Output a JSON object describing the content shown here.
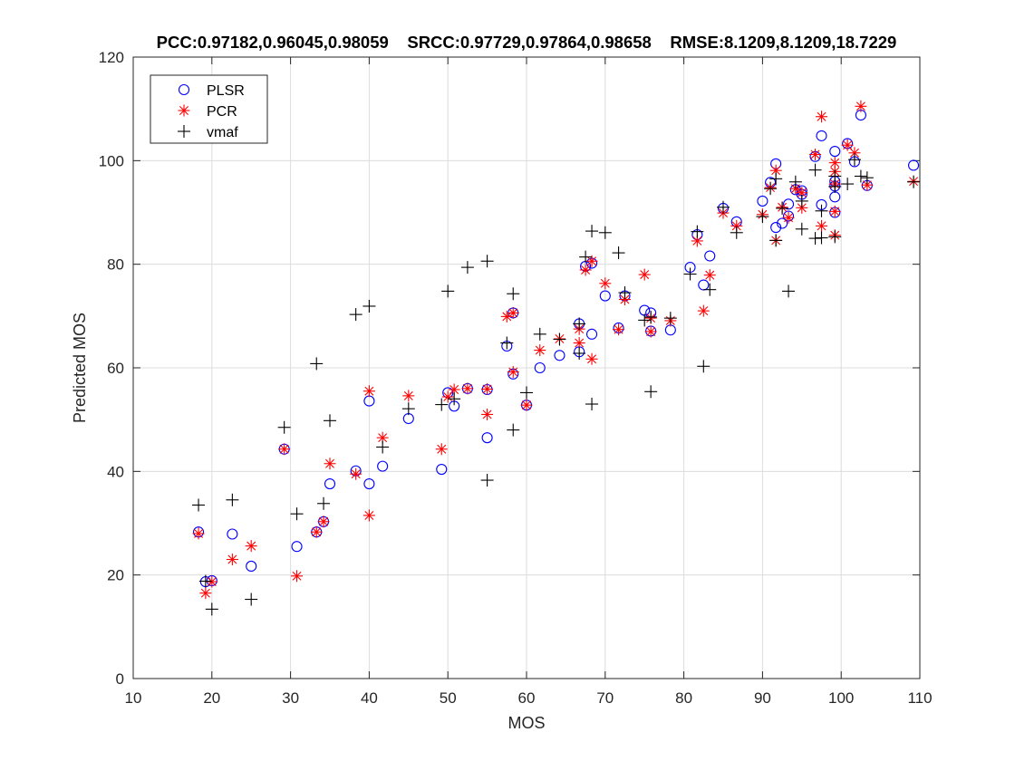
{
  "chart_data": {
    "type": "scatter",
    "title": "PCC:0.97182,0.96045,0.98059    SRCC:0.97729,0.97864,0.98658    RMSE:8.1209,8.1209,18.7229",
    "xlabel": "MOS",
    "ylabel": "Predicted MOS",
    "xlim": [
      10,
      110
    ],
    "ylim": [
      0,
      120
    ],
    "xticks": [
      "10",
      "20",
      "30",
      "40",
      "50",
      "60",
      "70",
      "80",
      "90",
      "100",
      "110"
    ],
    "yticks": [
      "0",
      "20",
      "40",
      "60",
      "80",
      "100",
      "120"
    ],
    "grid": true,
    "legend_position": "top-left",
    "series": [
      {
        "name": "PLSR",
        "marker": "circle",
        "color": "#0000ff",
        "points": [
          [
            18.3,
            28.3
          ],
          [
            19.2,
            18.7
          ],
          [
            20.0,
            18.9
          ],
          [
            22.6,
            27.9
          ],
          [
            25.0,
            21.7
          ],
          [
            29.2,
            44.3
          ],
          [
            30.8,
            25.5
          ],
          [
            33.3,
            28.3
          ],
          [
            34.2,
            30.3
          ],
          [
            35.0,
            37.6
          ],
          [
            38.3,
            40.1
          ],
          [
            40.0,
            37.6
          ],
          [
            40.0,
            53.6
          ],
          [
            41.7,
            41.0
          ],
          [
            45.0,
            50.2
          ],
          [
            49.2,
            40.4
          ],
          [
            50.0,
            55.2
          ],
          [
            50.8,
            52.6
          ],
          [
            52.5,
            56.0
          ],
          [
            55.0,
            55.8
          ],
          [
            55.0,
            46.5
          ],
          [
            57.5,
            64.2
          ],
          [
            58.3,
            70.6
          ],
          [
            58.3,
            58.8
          ],
          [
            60.0,
            52.8
          ],
          [
            61.7,
            60.0
          ],
          [
            64.2,
            62.4
          ],
          [
            66.7,
            68.5
          ],
          [
            66.7,
            63.1
          ],
          [
            67.5,
            79.6
          ],
          [
            68.3,
            80.2
          ],
          [
            68.3,
            66.5
          ],
          [
            70.0,
            73.9
          ],
          [
            71.7,
            67.7
          ],
          [
            72.5,
            73.9
          ],
          [
            75.0,
            71.1
          ],
          [
            75.8,
            70.6
          ],
          [
            75.8,
            67.1
          ],
          [
            78.3,
            67.3
          ],
          [
            80.8,
            79.4
          ],
          [
            81.7,
            85.7
          ],
          [
            82.5,
            76.0
          ],
          [
            83.3,
            81.6
          ],
          [
            85.0,
            90.8
          ],
          [
            86.7,
            88.2
          ],
          [
            90.0,
            92.2
          ],
          [
            91.0,
            95.8
          ],
          [
            91.7,
            87.1
          ],
          [
            91.7,
            99.4
          ],
          [
            92.5,
            87.9
          ],
          [
            93.3,
            89.3
          ],
          [
            93.3,
            91.6
          ],
          [
            94.2,
            94.4
          ],
          [
            95.0,
            94.2
          ],
          [
            95.0,
            93.5
          ],
          [
            96.7,
            100.8
          ],
          [
            97.5,
            104.8
          ],
          [
            97.5,
            91.5
          ],
          [
            99.2,
            101.8
          ],
          [
            99.2,
            96.0
          ],
          [
            99.2,
            95.1
          ],
          [
            99.2,
            93.0
          ],
          [
            99.2,
            90.0
          ],
          [
            100.8,
            103.3
          ],
          [
            101.7,
            99.8
          ],
          [
            102.5,
            108.8
          ],
          [
            103.3,
            95.2
          ],
          [
            109.2,
            99.1
          ]
        ]
      },
      {
        "name": "PCR",
        "marker": "asterisk",
        "color": "#ff0000",
        "points": [
          [
            18.3,
            28.0
          ],
          [
            19.2,
            16.5
          ],
          [
            20.0,
            18.7
          ],
          [
            22.6,
            23.0
          ],
          [
            25.0,
            25.6
          ],
          [
            29.2,
            44.3
          ],
          [
            30.8,
            19.8
          ],
          [
            33.3,
            28.3
          ],
          [
            34.2,
            30.3
          ],
          [
            35.0,
            41.5
          ],
          [
            38.3,
            39.5
          ],
          [
            40.0,
            31.5
          ],
          [
            40.0,
            55.5
          ],
          [
            41.7,
            46.5
          ],
          [
            45.0,
            54.6
          ],
          [
            49.2,
            44.3
          ],
          [
            50.0,
            54.4
          ],
          [
            50.8,
            55.8
          ],
          [
            52.5,
            56.0
          ],
          [
            55.0,
            51.0
          ],
          [
            55.0,
            55.9
          ],
          [
            57.5,
            69.9
          ],
          [
            58.3,
            70.6
          ],
          [
            58.3,
            59.2
          ],
          [
            60.0,
            52.8
          ],
          [
            61.7,
            63.4
          ],
          [
            64.2,
            65.6
          ],
          [
            66.7,
            67.5
          ],
          [
            66.7,
            64.8
          ],
          [
            67.5,
            78.9
          ],
          [
            68.3,
            80.6
          ],
          [
            68.3,
            61.7
          ],
          [
            70.0,
            76.3
          ],
          [
            71.7,
            67.4
          ],
          [
            72.5,
            73.2
          ],
          [
            75.0,
            78.0
          ],
          [
            75.8,
            69.6
          ],
          [
            75.8,
            67.0
          ],
          [
            78.3,
            69.1
          ],
          [
            81.7,
            84.5
          ],
          [
            82.5,
            71.0
          ],
          [
            83.3,
            77.9
          ],
          [
            85.0,
            89.9
          ],
          [
            86.7,
            87.4
          ],
          [
            90.0,
            89.6
          ],
          [
            91.0,
            94.8
          ],
          [
            91.7,
            84.6
          ],
          [
            91.7,
            98.1
          ],
          [
            92.5,
            91.0
          ],
          [
            93.3,
            89.0
          ],
          [
            94.2,
            94.6
          ],
          [
            95.0,
            93.8
          ],
          [
            95.0,
            90.9
          ],
          [
            96.7,
            101.2
          ],
          [
            97.5,
            108.5
          ],
          [
            97.5,
            87.4
          ],
          [
            99.2,
            99.6
          ],
          [
            99.2,
            97.9
          ],
          [
            99.2,
            95.5
          ],
          [
            99.2,
            85.6
          ],
          [
            99.2,
            90.2
          ],
          [
            100.8,
            103.0
          ],
          [
            101.7,
            101.5
          ],
          [
            102.5,
            110.5
          ],
          [
            103.3,
            95.3
          ],
          [
            109.2,
            96.0
          ]
        ]
      },
      {
        "name": "vmaf",
        "marker": "plus",
        "color": "#000000",
        "points": [
          [
            18.3,
            33.5
          ],
          [
            19.2,
            18.8
          ],
          [
            20.0,
            13.4
          ],
          [
            22.6,
            34.5
          ],
          [
            25.0,
            15.3
          ],
          [
            29.2,
            48.5
          ],
          [
            30.8,
            31.8
          ],
          [
            33.3,
            60.8
          ],
          [
            34.2,
            33.8
          ],
          [
            35.0,
            49.8
          ],
          [
            38.3,
            70.3
          ],
          [
            40.0,
            71.9
          ],
          [
            41.7,
            44.7
          ],
          [
            45.0,
            52.1
          ],
          [
            49.2,
            52.9
          ],
          [
            50.0,
            74.8
          ],
          [
            50.8,
            54.0
          ],
          [
            52.5,
            79.4
          ],
          [
            55.0,
            80.6
          ],
          [
            55.0,
            38.3
          ],
          [
            57.5,
            64.8
          ],
          [
            58.3,
            74.3
          ],
          [
            58.3,
            48.0
          ],
          [
            60.0,
            55.2
          ],
          [
            61.7,
            66.5
          ],
          [
            64.2,
            65.5
          ],
          [
            66.7,
            68.5
          ],
          [
            66.7,
            62.8
          ],
          [
            67.5,
            81.4
          ],
          [
            68.3,
            86.4
          ],
          [
            68.3,
            53.0
          ],
          [
            70.0,
            86.1
          ],
          [
            71.7,
            82.2
          ],
          [
            72.5,
            74.5
          ],
          [
            75.0,
            69.2
          ],
          [
            75.8,
            69.8
          ],
          [
            75.8,
            55.4
          ],
          [
            78.3,
            69.6
          ],
          [
            80.8,
            78.1
          ],
          [
            81.7,
            86.3
          ],
          [
            82.5,
            60.3
          ],
          [
            83.3,
            75.1
          ],
          [
            85.0,
            91.0
          ],
          [
            86.7,
            86.1
          ],
          [
            90.0,
            89.2
          ],
          [
            91.0,
            94.6
          ],
          [
            91.7,
            84.6
          ],
          [
            91.7,
            96.5
          ],
          [
            92.5,
            90.8
          ],
          [
            93.3,
            74.8
          ],
          [
            94.2,
            95.9
          ],
          [
            95.0,
            92.2
          ],
          [
            95.0,
            86.8
          ],
          [
            96.7,
            85.0
          ],
          [
            96.7,
            98.2
          ],
          [
            97.5,
            85.1
          ],
          [
            97.5,
            90.3
          ],
          [
            99.2,
            97.0
          ],
          [
            99.2,
            95.0
          ],
          [
            99.2,
            85.3
          ],
          [
            100.8,
            95.5
          ],
          [
            101.7,
            100.2
          ],
          [
            102.5,
            97.0
          ],
          [
            103.3,
            96.7
          ],
          [
            109.2,
            95.9
          ]
        ]
      }
    ]
  }
}
